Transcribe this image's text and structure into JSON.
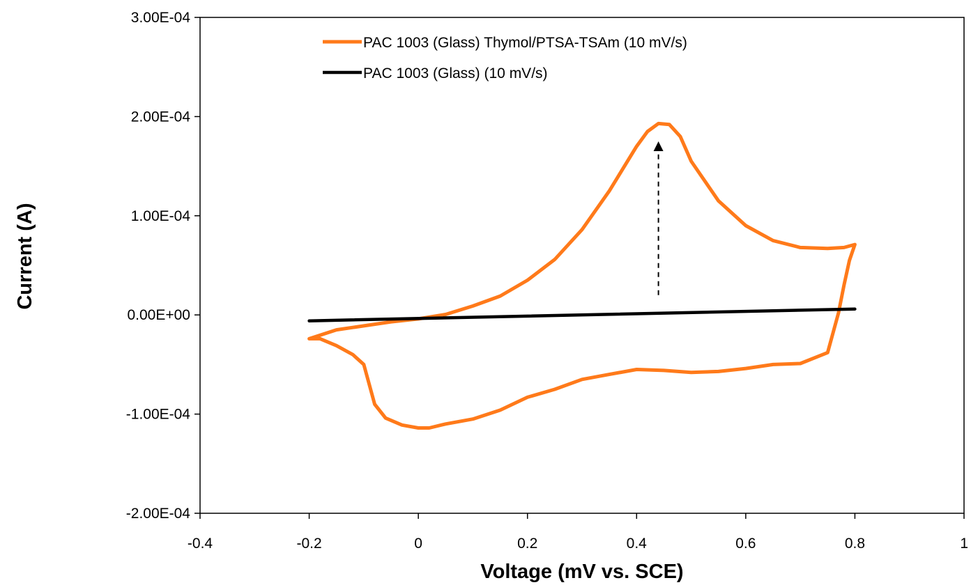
{
  "chart_data": {
    "type": "line",
    "title": "",
    "xlabel": "Voltage (mV vs. SCE)",
    "ylabel": "Current (A)",
    "xlim": [
      -0.4,
      1
    ],
    "ylim": [
      -0.0002,
      0.0003
    ],
    "x_ticks": [
      "-0.4",
      "-0.2",
      "0",
      "0.2",
      "0.4",
      "0.6",
      "0.8",
      "1"
    ],
    "y_ticks": [
      "3.00E-04",
      "2.00E-04",
      "1.00E-04",
      "0.00E+00",
      "-1.00E-04",
      "-2.00E-04"
    ],
    "x_tick_values": [
      -0.4,
      -0.2,
      0,
      0.2,
      0.4,
      0.6,
      0.8,
      1.0
    ],
    "y_tick_values": [
      0.0003,
      0.0002,
      0.0001,
      0,
      -0.0001,
      -0.0002
    ],
    "grid": false,
    "legend_position": "top",
    "series": [
      {
        "name": "PAC 1003 (Glass) Thymol/PTSA-TSAm (10 mV/s)",
        "color": "#ff7a1a",
        "x": [
          -0.2,
          -0.15,
          -0.1,
          -0.05,
          0,
          0.05,
          0.1,
          0.15,
          0.2,
          0.25,
          0.3,
          0.35,
          0.4,
          0.42,
          0.44,
          0.46,
          0.48,
          0.5,
          0.55,
          0.6,
          0.65,
          0.7,
          0.75,
          0.78,
          0.8,
          0.79,
          0.78,
          0.77,
          0.75,
          0.7,
          0.65,
          0.6,
          0.55,
          0.5,
          0.45,
          0.4,
          0.35,
          0.3,
          0.25,
          0.2,
          0.15,
          0.1,
          0.05,
          0.02,
          0,
          -0.03,
          -0.06,
          -0.08,
          -0.1,
          -0.12,
          -0.15,
          -0.18,
          -0.2
        ],
        "y": [
          -2.4e-05,
          -1.5e-05,
          -1.1e-05,
          -7e-06,
          -4e-06,
          5e-07,
          9e-06,
          1.9e-05,
          3.5e-05,
          5.6e-05,
          8.6e-05,
          0.000125,
          0.00017,
          0.000185,
          0.000193,
          0.000192,
          0.00018,
          0.000155,
          0.000115,
          9e-05,
          7.5e-05,
          6.8e-05,
          6.7e-05,
          6.8e-05,
          7.1e-05,
          5.5e-05,
          3e-05,
          2e-06,
          -3.8e-05,
          -4.9e-05,
          -5e-05,
          -5.4e-05,
          -5.7e-05,
          -5.8e-05,
          -5.6e-05,
          -5.5e-05,
          -6e-05,
          -6.5e-05,
          -7.5e-05,
          -8.3e-05,
          -9.6e-05,
          -0.000105,
          -0.00011,
          -0.000114,
          -0.000114,
          -0.000111,
          -0.000104,
          -9e-05,
          -5e-05,
          -4e-05,
          -3.1e-05,
          -2.4e-05,
          -2.4e-05
        ]
      },
      {
        "name": "PAC 1003 (Glass) (10 mV/s)",
        "color": "#000000",
        "x": [
          -0.2,
          0.8
        ],
        "y": [
          -6e-06,
          6e-06
        ]
      }
    ],
    "annotations": [
      {
        "type": "dashed-arrow",
        "x": [
          0.44,
          0.44
        ],
        "y": [
          2e-05,
          0.000175
        ]
      }
    ]
  }
}
